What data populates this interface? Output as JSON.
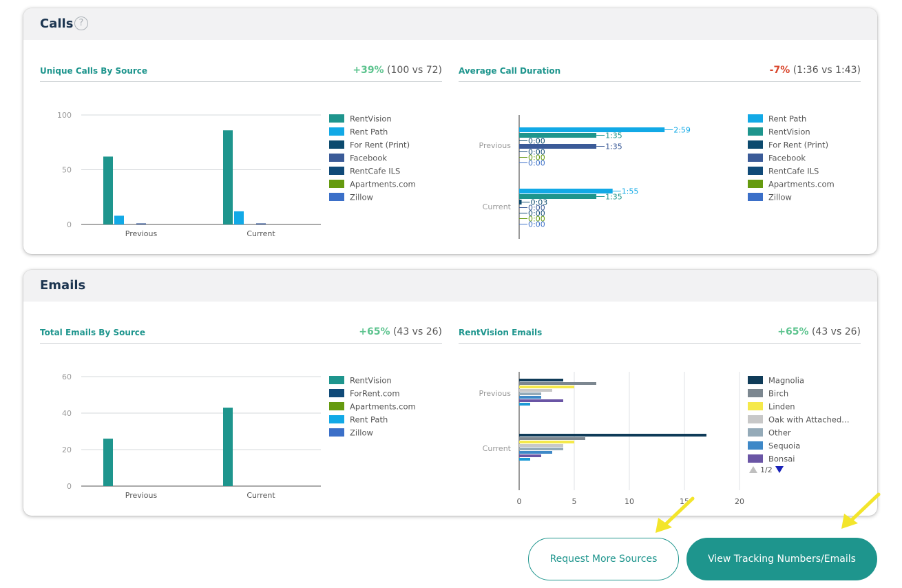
{
  "calls_panel": {
    "title": "Calls",
    "help_icon": "?"
  },
  "emails_panel": {
    "title": "Emails"
  },
  "charts": {
    "unique_calls": {
      "title": "Unique Calls By Source",
      "delta": "+39%",
      "comparison": "(100 vs 72)",
      "chart_data": {
        "type": "bar",
        "categories": [
          "Previous",
          "Current"
        ],
        "ylim": [
          0,
          100
        ],
        "yticks": [
          0,
          50,
          100
        ],
        "series": [
          {
            "name": "RentVision",
            "color": "#1e958d",
            "values": [
              62,
              86
            ]
          },
          {
            "name": "Rent Path",
            "color": "#12a9e6",
            "values": [
              8,
              12
            ]
          },
          {
            "name": "For Rent (Print)",
            "color": "#0c4a6e",
            "values": [
              0,
              0
            ]
          },
          {
            "name": "Facebook",
            "color": "#3b5b98",
            "values": [
              1,
              1
            ]
          },
          {
            "name": "RentCafe ILS",
            "color": "#104a78",
            "values": [
              0,
              0
            ]
          },
          {
            "name": "Apartments.com",
            "color": "#659a0f",
            "values": [
              0,
              0
            ]
          },
          {
            "name": "Zillow",
            "color": "#3b6fc8",
            "values": [
              0,
              0
            ]
          }
        ]
      }
    },
    "avg_duration": {
      "title": "Average Call Duration",
      "delta": "-7%",
      "comparison": "(1:36 vs 1:43)",
      "chart_data": {
        "type": "bar",
        "orientation": "horizontal",
        "categories": [
          "Previous",
          "Current"
        ],
        "series": [
          {
            "name": "Rent Path",
            "color": "#12a9e6",
            "values": [
              179,
              115
            ],
            "labels": [
              "2:59",
              "1:55"
            ]
          },
          {
            "name": "RentVision",
            "color": "#1e958d",
            "values": [
              95,
              95
            ],
            "labels": [
              "1:35",
              "1:35"
            ]
          },
          {
            "name": "For Rent (Print)",
            "color": "#0c4a6e",
            "values": [
              0,
              3
            ],
            "labels": [
              "0:00",
              "0:03"
            ]
          },
          {
            "name": "Facebook",
            "color": "#3b5b98",
            "values": [
              95,
              0
            ],
            "labels": [
              "1:35",
              "0:00"
            ]
          },
          {
            "name": "RentCafe ILS",
            "color": "#104a78",
            "values": [
              0,
              0
            ],
            "labels": [
              "0:00",
              "0:00"
            ]
          },
          {
            "name": "Apartments.com",
            "color": "#659a0f",
            "values": [
              0,
              0
            ],
            "labels": [
              "0:00",
              "0:00"
            ]
          },
          {
            "name": "Zillow",
            "color": "#3b6fc8",
            "values": [
              0,
              0
            ],
            "labels": [
              "0:00",
              "0:00"
            ]
          }
        ]
      }
    },
    "total_emails": {
      "title": "Total Emails By Source",
      "delta": "+65%",
      "comparison": "(43 vs 26)",
      "chart_data": {
        "type": "bar",
        "categories": [
          "Previous",
          "Current"
        ],
        "ylim": [
          0,
          60
        ],
        "yticks": [
          0,
          20,
          40,
          60
        ],
        "series": [
          {
            "name": "RentVision",
            "color": "#1e958d",
            "values": [
              26,
              43
            ]
          },
          {
            "name": "ForRent.com",
            "color": "#104a78",
            "values": [
              0,
              0
            ]
          },
          {
            "name": "Apartments.com",
            "color": "#659a0f",
            "values": [
              0,
              0
            ]
          },
          {
            "name": "Rent Path",
            "color": "#12a9e6",
            "values": [
              0,
              0
            ]
          },
          {
            "name": "Zillow",
            "color": "#3b6fc8",
            "values": [
              0,
              0
            ]
          }
        ]
      }
    },
    "rentvision_emails": {
      "title": "RentVision Emails",
      "delta": "+65%",
      "comparison": "(43 vs 26)",
      "pagination": "1/2",
      "chart_data": {
        "type": "bar",
        "orientation": "horizontal",
        "categories": [
          "Previous",
          "Current"
        ],
        "xlim": [
          0,
          20
        ],
        "xticks": [
          0,
          5,
          10,
          15,
          20
        ],
        "series": [
          {
            "name": "Magnolia",
            "color": "#0f3b58",
            "values": [
              4,
              17
            ]
          },
          {
            "name": "Birch",
            "color": "#7c8790",
            "values": [
              7,
              6
            ]
          },
          {
            "name": "Linden",
            "color": "#f5e94a",
            "values": [
              5,
              5
            ]
          },
          {
            "name": "Oak with Attached…",
            "color": "#c8c8c8",
            "values": [
              3,
              4
            ]
          },
          {
            "name": "Other",
            "color": "#94aab8",
            "values": [
              2,
              4
            ]
          },
          {
            "name": "Sequoia",
            "color": "#3e88c7",
            "values": [
              2,
              3
            ]
          },
          {
            "name": "Bonsai",
            "color": "#6a55a5",
            "values": [
              4,
              2
            ]
          },
          {
            "name": "",
            "color": "#1c9ad6",
            "values": [
              1,
              1
            ]
          }
        ]
      }
    }
  },
  "buttons": {
    "request_more": "Request More Sources",
    "view_tracking": "View Tracking Numbers/Emails"
  }
}
